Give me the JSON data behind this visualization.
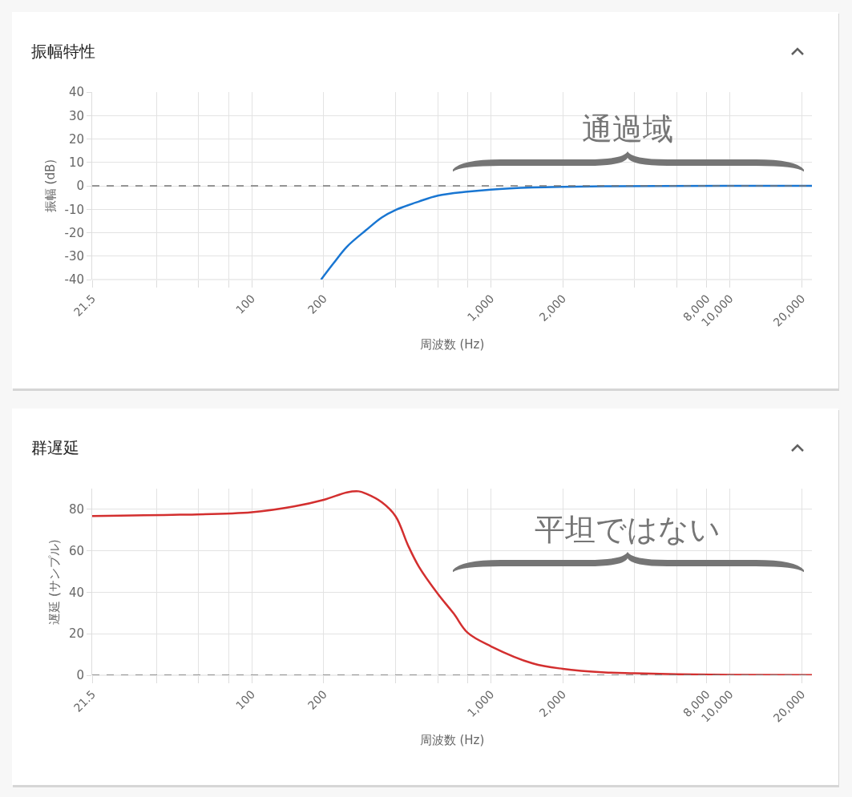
{
  "chart_data": [
    {
      "type": "line",
      "title": "振幅特性",
      "xlabel": "周波数 (Hz)",
      "ylabel": "振幅 (dB)",
      "log": "x",
      "grid": true,
      "x": [
        195,
        220,
        250,
        300,
        350,
        400,
        500,
        600,
        800,
        1000,
        1500,
        2000,
        3000,
        5000,
        10000,
        22050
      ],
      "series": [
        {
          "color": "#1976d2",
          "values": [
            -40,
            -33,
            -26,
            -19,
            -13.5,
            -10.3,
            -6.7,
            -4.2,
            -2.5,
            -1.6,
            -0.7,
            -0.4,
            -0.2,
            -0.1,
            0,
            0
          ]
        }
      ],
      "xlim": [
        21.5,
        22050
      ],
      "xticks": [
        21.5,
        {
          "value": 40,
          "label": null
        },
        {
          "value": 60,
          "label": null
        },
        {
          "value": 80,
          "label": null
        },
        100,
        200,
        {
          "value": 400,
          "label": null
        },
        {
          "value": 600,
          "label": null
        },
        {
          "value": 800,
          "label": null
        },
        {
          "value": 1000,
          "label": "1,000"
        },
        {
          "value": 2000,
          "label": "2,000"
        },
        {
          "value": 4000,
          "label": null
        },
        {
          "value": 6000,
          "label": null
        },
        {
          "value": 8000,
          "label": "8,000"
        },
        {
          "value": 10000,
          "label": "10,000"
        },
        {
          "value": 20000,
          "label": "20,000"
        }
      ],
      "ylim": [
        -40,
        40
      ],
      "yticks": [
        -40,
        -30,
        -20,
        -10,
        0,
        10,
        20,
        30,
        40
      ],
      "ref_lines": [
        {
          "axis": "y",
          "value": 0,
          "color": "#757575",
          "line_style": "dashed"
        }
      ],
      "annotations": [
        "通過域"
      ]
    },
    {
      "type": "line",
      "title": "群遅延",
      "xlabel": "周波数 (Hz)",
      "ylabel": "遅延 (サンプル)",
      "log": "x",
      "grid": true,
      "x": [
        21.5,
        50,
        100,
        150,
        200,
        250,
        280,
        300,
        350,
        400,
        450,
        500,
        600,
        700,
        800,
        1000,
        1500,
        2000,
        3000,
        4000,
        6000,
        10000,
        22050
      ],
      "series": [
        {
          "color": "#d32f2f",
          "values": [
            76.8,
            77.4,
            78.6,
            81.4,
            84.6,
            88.2,
            88.7,
            87.6,
            83.4,
            76.6,
            62.8,
            52.4,
            39.3,
            29.7,
            20.5,
            14,
            5.7,
            3.1,
            1.4,
            1,
            0.5,
            0.2,
            0.1
          ]
        }
      ],
      "xlim": [
        21.5,
        22050
      ],
      "xticks": [
        21.5,
        {
          "value": 40,
          "label": null
        },
        {
          "value": 60,
          "label": null
        },
        {
          "value": 80,
          "label": null
        },
        100,
        200,
        {
          "value": 400,
          "label": null
        },
        {
          "value": 600,
          "label": null
        },
        {
          "value": 800,
          "label": null
        },
        {
          "value": 1000,
          "label": "1,000"
        },
        {
          "value": 2000,
          "label": "2,000"
        },
        {
          "value": 4000,
          "label": null
        },
        {
          "value": 6000,
          "label": null
        },
        {
          "value": 8000,
          "label": "8,000"
        },
        {
          "value": 10000,
          "label": "10,000"
        },
        {
          "value": 20000,
          "label": "20,000"
        }
      ],
      "ylim": [
        0,
        90
      ],
      "yticks": [
        0,
        20,
        40,
        60,
        80
      ],
      "ref_lines": [
        {
          "axis": "y",
          "value": 0,
          "color": "#757575",
          "line_style": "dashed"
        }
      ],
      "annotations": [
        "平坦ではない"
      ]
    }
  ]
}
